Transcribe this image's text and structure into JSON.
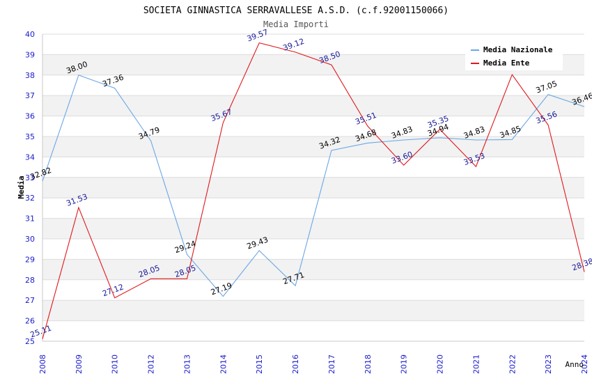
{
  "chart_data": {
    "type": "line",
    "title": "SOCIETA GINNASTICA SERRAVALLESE A.S.D. (c.f.92001150066)",
    "subtitle": "Media Importi",
    "xlabel": "Anno",
    "ylabel": "Media",
    "ylim": [
      25,
      40
    ],
    "yticks": [
      "25",
      "26",
      "27",
      "28",
      "29",
      "30",
      "31",
      "32",
      "33",
      "34",
      "35",
      "36",
      "37",
      "38",
      "39",
      "40"
    ],
    "categories": [
      "2008",
      "2009",
      "2010",
      "2012",
      "2013",
      "2014",
      "2015",
      "2016",
      "2017",
      "2018",
      "2019",
      "2020",
      "2021",
      "2022",
      "2023",
      "2024"
    ],
    "grid": "horizontal bands",
    "legend_position": "top-right",
    "series": [
      {
        "name": "Media Nazionale",
        "color": "#6aa7e6",
        "label_color": "#000000",
        "values": [
          32.82,
          38.0,
          37.36,
          34.79,
          29.24,
          27.19,
          29.43,
          27.71,
          34.32,
          34.68,
          34.83,
          34.94,
          34.83,
          34.85,
          37.05,
          36.46
        ],
        "labels": [
          "32.82",
          "38.00",
          "37.36",
          "34.79",
          "29.24",
          "27.19",
          "29.43",
          "27.71",
          "34.32",
          "34.68",
          "34.83",
          "34.94",
          "34.83",
          "34.85",
          "37.05",
          "36.46"
        ]
      },
      {
        "name": "Media Ente",
        "color": "#e0181c",
        "label_color": "#1a1a99",
        "values": [
          25.11,
          31.53,
          27.12,
          28.05,
          28.05,
          35.67,
          39.57,
          39.12,
          38.5,
          35.51,
          33.6,
          35.35,
          33.53,
          38.02,
          35.56,
          28.38
        ],
        "labels": [
          "25.11",
          "31.53",
          "27.12",
          "28.05",
          "28.05",
          "35.67",
          "39.57",
          "39.12",
          "38.50",
          "35.51",
          "33.60",
          "35.35",
          "33.53",
          "",
          "35.56",
          "28.38"
        ]
      }
    ]
  }
}
